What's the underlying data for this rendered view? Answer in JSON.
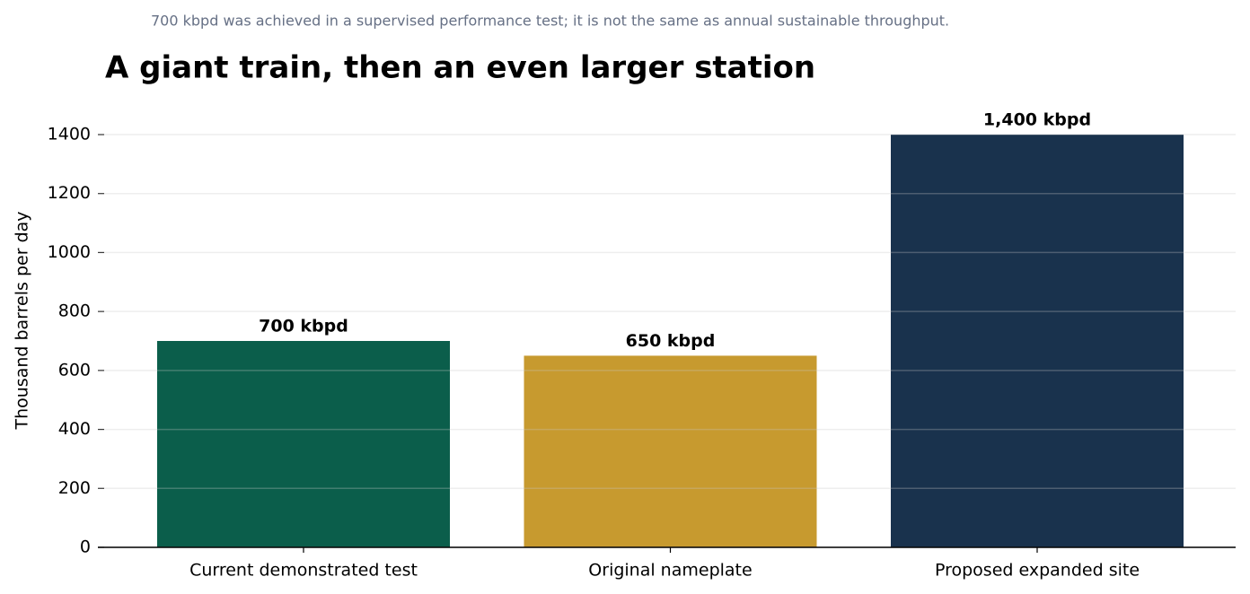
{
  "chart_data": {
    "type": "bar",
    "annotation": "700 kbpd was achieved in a supervised performance test; it is not the same as annual sustainable throughput.",
    "title": "A giant train, then an even larger station",
    "y_label": "Thousand barrels per day",
    "categories": [
      "Current demonstrated test",
      "Original nameplate",
      "Proposed expanded site"
    ],
    "values": [
      700,
      650,
      1400
    ],
    "value_labels": [
      "700 kbpd",
      "650 kbpd",
      "1,400 kbpd"
    ],
    "colors": [
      "#0b5e4b",
      "#c79a2f",
      "#19324d"
    ],
    "ylim": [
      0,
      1400
    ],
    "yticks": [
      0,
      200,
      400,
      600,
      800,
      1000,
      1200,
      1400
    ],
    "grid": true
  }
}
